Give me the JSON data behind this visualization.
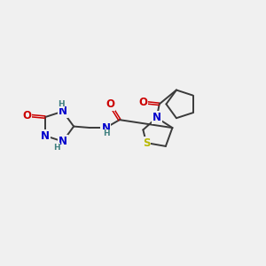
{
  "bg_color": "#f0f0f0",
  "atom_colors": {
    "C": "#3a3a3a",
    "N": "#0000cc",
    "O": "#cc0000",
    "S": "#b8b800",
    "H": "#408080"
  },
  "bond_color": "#3a3a3a",
  "bond_width": 1.4,
  "font_size_atom": 8.5,
  "font_size_h": 6.5,
  "xlim": [
    0,
    10
  ],
  "ylim": [
    0,
    10
  ]
}
